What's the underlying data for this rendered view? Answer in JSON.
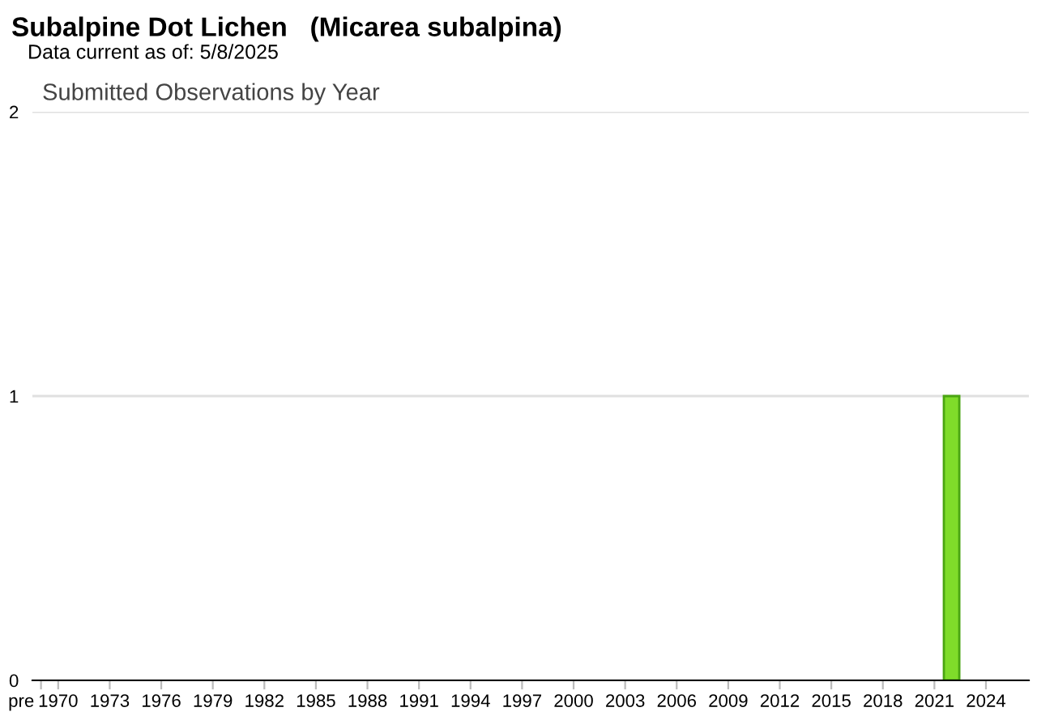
{
  "chart_data": {
    "type": "bar",
    "title": "Subalpine Dot Lichen   (Micarea subalpina)",
    "subtitle": "Data current as of: 5/8/2025",
    "annotations": [
      "Submitted Observations by Year"
    ],
    "categories": [
      "pre",
      "1970",
      null,
      null,
      "1973",
      null,
      null,
      "1976",
      null,
      null,
      "1979",
      null,
      null,
      "1982",
      null,
      null,
      "1985",
      null,
      null,
      "1988",
      null,
      null,
      "1991",
      null,
      null,
      "1994",
      null,
      null,
      "1997",
      null,
      null,
      "2000",
      null,
      null,
      "2003",
      null,
      null,
      "2006",
      null,
      null,
      "2009",
      null,
      null,
      "2012",
      null,
      null,
      "2015",
      null,
      null,
      "2018",
      null,
      null,
      "2021",
      null,
      null,
      "2024",
      null,
      null
    ],
    "values": [
      0,
      0,
      0,
      0,
      0,
      0,
      0,
      0,
      0,
      0,
      0,
      0,
      0,
      0,
      0,
      0,
      0,
      0,
      0,
      0,
      0,
      0,
      0,
      0,
      0,
      0,
      0,
      0,
      0,
      0,
      0,
      0,
      0,
      0,
      0,
      0,
      0,
      0,
      0,
      0,
      0,
      0,
      0,
      0,
      0,
      0,
      0,
      0,
      0,
      0,
      0,
      0,
      0,
      1,
      0,
      0,
      0,
      0
    ],
    "color": "#7fdc2a",
    "ylim": [
      0,
      2
    ],
    "yticks": [
      0,
      1,
      2
    ],
    "grid": "y",
    "legend": false
  }
}
